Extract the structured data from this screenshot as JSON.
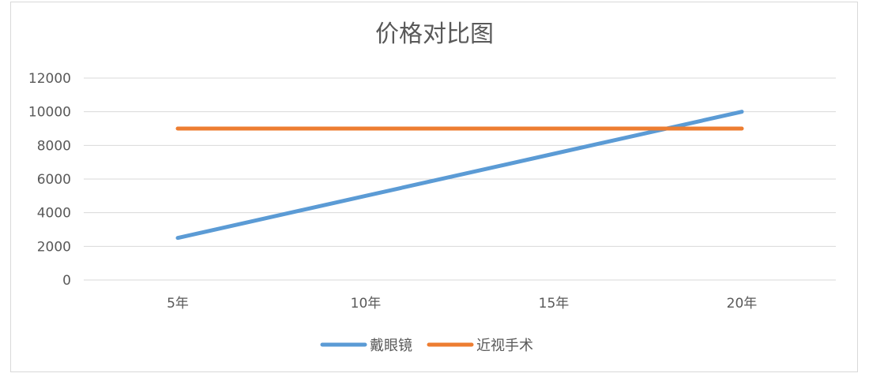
{
  "chart_data": {
    "type": "line",
    "title": "价格对比图",
    "xlabel": "",
    "ylabel": "",
    "categories": [
      "5年",
      "10年",
      "15年",
      "20年"
    ],
    "ylim": [
      0,
      12000
    ],
    "yticks": [
      0,
      2000,
      4000,
      6000,
      8000,
      10000,
      12000
    ],
    "ytick_labels": [
      "0",
      "2000",
      "4000",
      "6000",
      "8000",
      "10000",
      "12000"
    ],
    "grid": true,
    "legend_position": "bottom",
    "series": [
      {
        "name": "戴眼镜",
        "values": [
          2500,
          5000,
          7500,
          10000
        ],
        "color": "#5b9bd5"
      },
      {
        "name": "近视手术",
        "values": [
          9000,
          9000,
          9000,
          9000
        ],
        "color": "#ed7d31"
      }
    ]
  }
}
